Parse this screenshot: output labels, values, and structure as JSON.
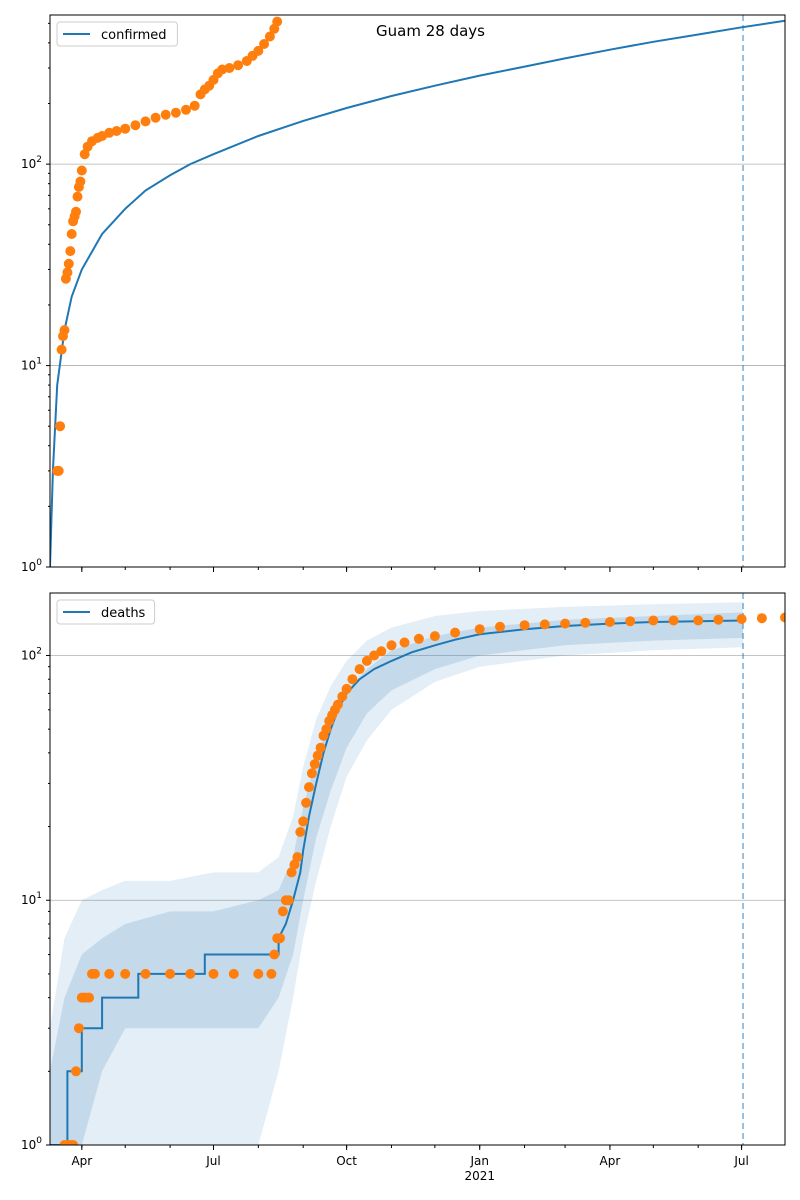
{
  "colors": {
    "model": "#1f77b4",
    "observed": "#ff7f0e",
    "grid": "#b0b0b0",
    "band": "#1f77b4"
  },
  "chart_data": [
    {
      "type": "line",
      "title": "Guam 28 days",
      "legend": {
        "label": "confirmed",
        "placement": "top-left"
      },
      "yscale": "log",
      "ylim": [
        1,
        550
      ],
      "xlim": [
        "2020-03-10",
        "2021-07-31"
      ],
      "y_ticks": [
        {
          "value": 1,
          "label": "10^0"
        },
        {
          "value": 10,
          "label": "10^1"
        },
        {
          "value": 100,
          "label": "10^2"
        }
      ],
      "x_ticks": [
        {
          "date": "2020-04-01",
          "label": "Apr"
        },
        {
          "date": "2020-07-01",
          "label": "Jul"
        },
        {
          "date": "2020-10-01",
          "label": "Oct"
        },
        {
          "date": "2021-01-01",
          "label": "Jan",
          "sublabel": "2021"
        },
        {
          "date": "2021-04-01",
          "label": "Apr"
        },
        {
          "date": "2021-07-01",
          "label": "Jul"
        }
      ],
      "vline": "2021-07-02",
      "model_series": {
        "name": "confirmed",
        "x": [
          "2020-03-10",
          "2020-03-12",
          "2020-03-15",
          "2020-03-20",
          "2020-03-25",
          "2020-04-01",
          "2020-04-15",
          "2020-05-01",
          "2020-05-15",
          "2020-06-01",
          "2020-06-15",
          "2020-07-01",
          "2020-08-01",
          "2020-09-01",
          "2020-10-01",
          "2020-11-01",
          "2020-12-01",
          "2021-01-01",
          "2021-02-01",
          "2021-03-01",
          "2021-04-01",
          "2021-05-01",
          "2021-06-01",
          "2021-07-01",
          "2021-07-31"
        ],
        "y": [
          1,
          3,
          8,
          15,
          22,
          30,
          45,
          60,
          74,
          88,
          100,
          112,
          138,
          164,
          190,
          218,
          245,
          275,
          305,
          335,
          370,
          405,
          440,
          478,
          515
        ]
      },
      "observed_series": {
        "x": [
          "2020-03-15",
          "2020-03-16",
          "2020-03-17",
          "2020-03-18",
          "2020-03-19",
          "2020-03-20",
          "2020-03-21",
          "2020-03-22",
          "2020-03-23",
          "2020-03-24",
          "2020-03-25",
          "2020-03-26",
          "2020-03-27",
          "2020-03-28",
          "2020-03-29",
          "2020-03-30",
          "2020-03-31",
          "2020-04-01",
          "2020-04-03",
          "2020-04-05",
          "2020-04-08",
          "2020-04-12",
          "2020-04-15",
          "2020-04-20",
          "2020-04-25",
          "2020-05-01",
          "2020-05-08",
          "2020-05-15",
          "2020-05-22",
          "2020-05-29",
          "2020-06-05",
          "2020-06-12",
          "2020-06-18",
          "2020-06-22",
          "2020-06-25",
          "2020-06-28",
          "2020-07-01",
          "2020-07-04",
          "2020-07-07",
          "2020-07-12",
          "2020-07-18",
          "2020-07-24",
          "2020-07-28",
          "2020-08-01",
          "2020-08-05",
          "2020-08-09",
          "2020-08-12",
          "2020-08-14"
        ],
        "y": [
          3,
          3,
          5,
          12,
          14,
          15,
          27,
          29,
          32,
          37,
          45,
          52,
          55,
          58,
          69,
          77,
          82,
          93,
          112,
          122,
          130,
          135,
          138,
          143,
          146,
          150,
          156,
          163,
          170,
          176,
          180,
          186,
          195,
          222,
          235,
          245,
          262,
          282,
          295,
          300,
          310,
          325,
          345,
          365,
          395,
          430,
          470,
          510
        ]
      }
    },
    {
      "type": "line",
      "legend": {
        "label": "deaths",
        "placement": "top-left"
      },
      "yscale": "log",
      "ylim": [
        1,
        180
      ],
      "xlim": [
        "2020-03-10",
        "2021-07-31"
      ],
      "y_ticks": [
        {
          "value": 1,
          "label": "10^0"
        },
        {
          "value": 10,
          "label": "10^1"
        },
        {
          "value": 100,
          "label": "10^2"
        }
      ],
      "x_ticks": [
        {
          "date": "2020-04-01",
          "label": "Apr"
        },
        {
          "date": "2020-07-01",
          "label": "Jul"
        },
        {
          "date": "2020-10-01",
          "label": "Oct"
        },
        {
          "date": "2021-01-01",
          "label": "Jan",
          "sublabel": "2021"
        },
        {
          "date": "2021-04-01",
          "label": "Apr"
        },
        {
          "date": "2021-07-01",
          "label": "Jul"
        }
      ],
      "vline": "2021-07-02",
      "model_series": {
        "name": "deaths",
        "x": [
          "2020-03-10",
          "2020-03-22",
          "2020-03-22",
          "2020-04-01",
          "2020-04-01",
          "2020-04-15",
          "2020-04-15",
          "2020-05-10",
          "2020-05-10",
          "2020-06-25",
          "2020-06-25",
          "2020-08-15",
          "2020-08-15",
          "2020-08-20",
          "2020-08-25",
          "2020-08-30",
          "2020-09-01",
          "2020-09-05",
          "2020-09-10",
          "2020-09-15",
          "2020-09-20",
          "2020-09-25",
          "2020-10-01",
          "2020-10-10",
          "2020-10-20",
          "2020-11-01",
          "2020-11-15",
          "2020-12-01",
          "2020-12-15",
          "2021-01-01",
          "2021-02-01",
          "2021-03-01",
          "2021-04-01",
          "2021-05-01",
          "2021-06-01",
          "2021-07-02"
        ],
        "y": [
          1,
          1,
          2,
          2,
          3,
          3,
          4,
          4,
          5,
          5,
          6,
          6,
          7,
          8,
          10,
          13,
          16,
          22,
          30,
          40,
          50,
          60,
          70,
          80,
          88,
          95,
          103,
          110,
          116,
          122,
          128,
          132,
          135,
          137,
          138,
          139
        ]
      },
      "bands": {
        "x": [
          "2020-03-10",
          "2020-03-20",
          "2020-04-01",
          "2020-04-15",
          "2020-05-01",
          "2020-06-01",
          "2020-07-01",
          "2020-08-01",
          "2020-08-15",
          "2020-08-25",
          "2020-09-01",
          "2020-09-10",
          "2020-09-20",
          "2020-10-01",
          "2020-10-15",
          "2020-11-01",
          "2020-12-01",
          "2021-01-01",
          "2021-03-01",
          "2021-05-01",
          "2021-07-02"
        ],
        "outer_low": [
          1,
          1,
          1,
          1,
          1,
          1,
          1,
          1,
          2,
          4,
          7,
          12,
          20,
          32,
          45,
          60,
          78,
          90,
          100,
          105,
          108
        ],
        "outer_high": [
          3,
          7,
          10,
          11,
          12,
          12,
          13,
          13,
          15,
          22,
          35,
          55,
          75,
          95,
          115,
          130,
          145,
          152,
          158,
          162,
          165
        ],
        "inner_low": [
          1,
          1,
          1,
          2,
          3,
          3,
          3,
          3,
          4,
          6,
          10,
          18,
          28,
          42,
          58,
          72,
          88,
          100,
          110,
          115,
          118
        ],
        "inner_high": [
          2,
          4,
          6,
          7,
          8,
          9,
          9,
          10,
          11,
          15,
          24,
          38,
          55,
          72,
          88,
          105,
          120,
          130,
          140,
          145,
          150
        ]
      },
      "observed_series": {
        "x": [
          "2020-03-20",
          "2020-03-22",
          "2020-03-24",
          "2020-03-26",
          "2020-03-28",
          "2020-03-30",
          "2020-04-01",
          "2020-04-02",
          "2020-04-04",
          "2020-04-06",
          "2020-04-08",
          "2020-04-10",
          "2020-04-20",
          "2020-05-01",
          "2020-05-15",
          "2020-06-01",
          "2020-06-15",
          "2020-07-01",
          "2020-07-15",
          "2020-08-01",
          "2020-08-10",
          "2020-08-12",
          "2020-08-14",
          "2020-08-16",
          "2020-08-18",
          "2020-08-20",
          "2020-08-22",
          "2020-08-24",
          "2020-08-26",
          "2020-08-28",
          "2020-08-30",
          "2020-09-01",
          "2020-09-03",
          "2020-09-05",
          "2020-09-07",
          "2020-09-09",
          "2020-09-11",
          "2020-09-13",
          "2020-09-15",
          "2020-09-17",
          "2020-09-19",
          "2020-09-21",
          "2020-09-23",
          "2020-09-25",
          "2020-09-28",
          "2020-10-01",
          "2020-10-05",
          "2020-10-10",
          "2020-10-15",
          "2020-10-20",
          "2020-10-25",
          "2020-11-01",
          "2020-11-10",
          "2020-11-20",
          "2020-12-01",
          "2020-12-15",
          "2021-01-01",
          "2021-01-15",
          "2021-02-01",
          "2021-02-15",
          "2021-03-01",
          "2021-03-15",
          "2021-04-01",
          "2021-04-15",
          "2021-05-01",
          "2021-05-15",
          "2021-06-01",
          "2021-06-15",
          "2021-07-01",
          "2021-07-15",
          "2021-07-31"
        ],
        "y": [
          1,
          1,
          1,
          1,
          2,
          3,
          4,
          4,
          4,
          4,
          5,
          5,
          5,
          5,
          5,
          5,
          5,
          5,
          5,
          5,
          5,
          6,
          7,
          7,
          9,
          10,
          10,
          13,
          14,
          15,
          19,
          21,
          25,
          29,
          33,
          36,
          39,
          42,
          47,
          50,
          54,
          57,
          60,
          63,
          68,
          73,
          80,
          88,
          95,
          100,
          104,
          110,
          113,
          117,
          120,
          124,
          128,
          131,
          133,
          134,
          135,
          136,
          137,
          138,
          139,
          139,
          139,
          140,
          141,
          142,
          143
        ]
      }
    }
  ]
}
